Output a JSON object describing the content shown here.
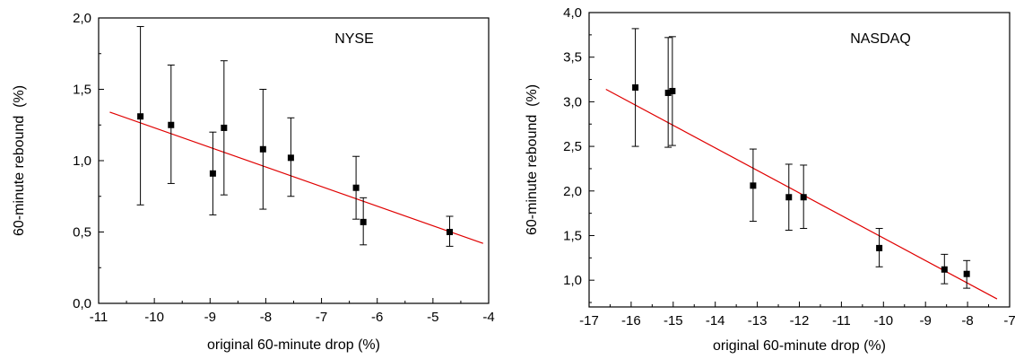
{
  "chart_data": [
    {
      "type": "scatter",
      "title": "NYSE",
      "xlabel": "original 60-minute drop (%)",
      "ylabel": "60-minute rebound  (%)",
      "xlim": [
        -11,
        -4
      ],
      "ylim": [
        0.0,
        2.0
      ],
      "xticks": [
        -11,
        -10,
        -9,
        -8,
        -7,
        -6,
        -5,
        -4
      ],
      "yticks": [
        0.0,
        0.5,
        1.0,
        1.5,
        2.0
      ],
      "xtick_labels": [
        "-11",
        "-10",
        "-9",
        "-8",
        "-7",
        "-6",
        "-5",
        "-4"
      ],
      "ytick_labels": [
        "0,0",
        "0,5",
        "1,0",
        "1,5",
        "2,0"
      ],
      "grid": false,
      "marker_color": "#000000",
      "errorbar_color": "#000000",
      "fit_color": "#e00000",
      "points": [
        {
          "x": -10.25,
          "y": 1.31,
          "ylow": 0.69,
          "yhigh": 1.94
        },
        {
          "x": -9.7,
          "y": 1.25,
          "ylow": 0.84,
          "yhigh": 1.67
        },
        {
          "x": -8.95,
          "y": 0.91,
          "ylow": 0.62,
          "yhigh": 1.2
        },
        {
          "x": -8.75,
          "y": 1.23,
          "ylow": 0.76,
          "yhigh": 1.7
        },
        {
          "x": -8.05,
          "y": 1.08,
          "ylow": 0.66,
          "yhigh": 1.5
        },
        {
          "x": -7.55,
          "y": 1.02,
          "ylow": 0.75,
          "yhigh": 1.3
        },
        {
          "x": -6.38,
          "y": 0.81,
          "ylow": 0.59,
          "yhigh": 1.03
        },
        {
          "x": -6.25,
          "y": 0.57,
          "ylow": 0.41,
          "yhigh": 0.74
        },
        {
          "x": -4.7,
          "y": 0.5,
          "ylow": 0.4,
          "yhigh": 0.61
        }
      ],
      "fit_line": {
        "x": [
          -10.8,
          -4.1
        ],
        "y": [
          1.34,
          0.42
        ]
      }
    },
    {
      "type": "scatter",
      "title": "NASDAQ",
      "xlabel": "original 60-minute drop (%)",
      "ylabel": "60-minute rebound  (%)",
      "xlim": [
        -17,
        -7
      ],
      "ylim": [
        0.7,
        4.0
      ],
      "xticks": [
        -17,
        -16,
        -15,
        -14,
        -13,
        -12,
        -11,
        -10,
        -9,
        -8,
        -7
      ],
      "yticks": [
        1.0,
        1.5,
        2.0,
        2.5,
        3.0,
        3.5,
        4.0
      ],
      "xtick_labels": [
        "-17",
        "-16",
        "-15",
        "-14",
        "-13",
        "-12",
        "-11",
        "-10",
        "-9",
        "-8",
        "-7"
      ],
      "ytick_labels": [
        "1,0",
        "1,5",
        "2,0",
        "2,5",
        "3,0",
        "3,5",
        "4,0"
      ],
      "grid": false,
      "marker_color": "#000000",
      "errorbar_color": "#000000",
      "fit_color": "#e00000",
      "points": [
        {
          "x": -15.9,
          "y": 3.16,
          "ylow": 2.5,
          "yhigh": 3.82
        },
        {
          "x": -15.12,
          "y": 3.1,
          "ylow": 2.49,
          "yhigh": 3.72
        },
        {
          "x": -15.02,
          "y": 3.12,
          "ylow": 2.51,
          "yhigh": 3.73
        },
        {
          "x": -13.1,
          "y": 2.06,
          "ylow": 1.66,
          "yhigh": 2.47
        },
        {
          "x": -12.25,
          "y": 1.93,
          "ylow": 1.56,
          "yhigh": 2.3
        },
        {
          "x": -11.9,
          "y": 1.93,
          "ylow": 1.58,
          "yhigh": 2.29
        },
        {
          "x": -10.1,
          "y": 1.36,
          "ylow": 1.15,
          "yhigh": 1.58
        },
        {
          "x": -8.55,
          "y": 1.12,
          "ylow": 0.96,
          "yhigh": 1.29
        },
        {
          "x": -8.02,
          "y": 1.07,
          "ylow": 0.91,
          "yhigh": 1.22
        }
      ],
      "fit_line": {
        "x": [
          -16.6,
          -7.3
        ],
        "y": [
          3.14,
          0.79
        ]
      }
    }
  ]
}
